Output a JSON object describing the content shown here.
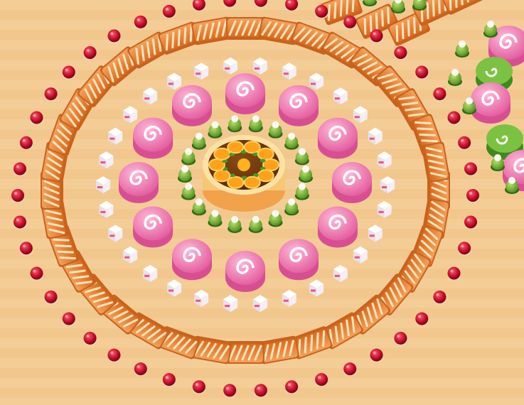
{
  "scene": {
    "name": "dessert-arrangement-board",
    "background_color": "#f3ca92",
    "center_item": "orange-fruit-tart",
    "rings": [
      {
        "item": "raspberry-cupcake",
        "count": 46
      },
      {
        "item": "glazed-jam-pastry",
        "count": 36
      },
      {
        "item": "cake-slice-cube",
        "count": 30
      },
      {
        "item": "pink-swiss-roll",
        "count": 12
      },
      {
        "item": "matcha-cream-cupcake",
        "count": 18
      }
    ],
    "offboard_groups": [
      {
        "item": "swiss-roll-pink-and-green",
        "location": "right"
      },
      {
        "item": "glazed-jam-pastry",
        "location": "top-right"
      }
    ]
  }
}
